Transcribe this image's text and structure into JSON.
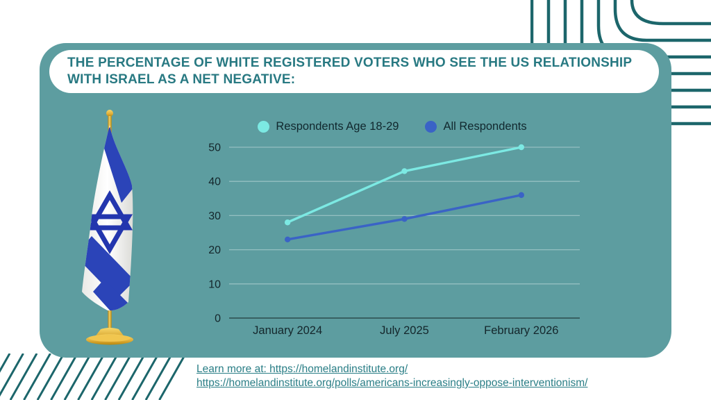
{
  "title": {
    "text": "THE PERCENTAGE OF WHITE REGISTERED VOTERS WHO SEE THE US RELATIONSHIP WITH ISRAEL AS A NET NEGATIVE:"
  },
  "chart_data": {
    "type": "line",
    "categories": [
      "January 2024",
      "July 2025",
      "February 2026"
    ],
    "series": [
      {
        "name": "Respondents Age 18-29",
        "color": "#7ce9e3",
        "values": [
          28,
          43,
          50
        ]
      },
      {
        "name": "All Respondents",
        "color": "#3a63c6",
        "values": [
          23,
          29,
          36
        ]
      }
    ],
    "ylim": [
      0,
      50
    ],
    "yticks": [
      0,
      10,
      20,
      30,
      40,
      50
    ],
    "grid": true,
    "legend_position": "top"
  },
  "footer": {
    "line1": "Learn more at: https://homelandinstitute.org/",
    "line2": "https://homelandinstitute.org/polls/americans-increasingly-oppose-interventionism/"
  },
  "colors": {
    "card_background": "#5d9da0",
    "title_text": "#287982",
    "decor_lines": "#1c666b",
    "axis_text": "#14262b",
    "link_text": "#2a7e86",
    "flag_blue": "#2b44b8",
    "gold": "#dfae39"
  },
  "decor": {
    "flag_icon": "israel-flag-on-stand",
    "top_right_icon": "concentric-corner-arcs",
    "bottom_left_icon": "diagonal-stripes"
  }
}
